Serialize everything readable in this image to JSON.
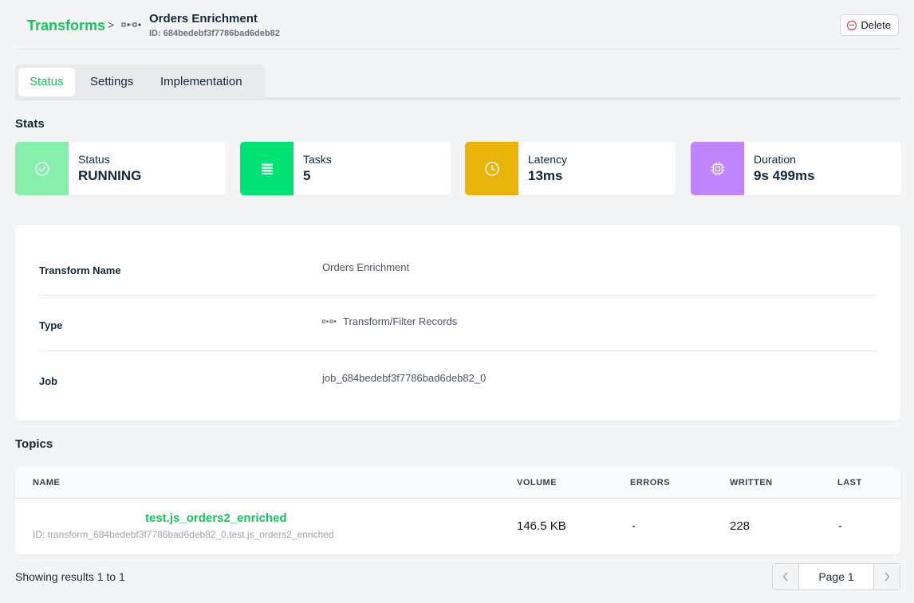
{
  "header": {
    "breadcrumb_root": "Transforms",
    "breadcrumb_sep": ">",
    "title": "Orders Enrichment",
    "id_text": "ID: 684bedebf3f7786bad6deb82",
    "delete_label": "Delete"
  },
  "tabs": [
    {
      "label": "Status",
      "active": true
    },
    {
      "label": "Settings",
      "active": false
    },
    {
      "label": "Implementation",
      "active": false
    }
  ],
  "stats": {
    "title": "Stats",
    "cards": [
      {
        "label": "Status",
        "value": "RUNNING",
        "icon": "check-circle-icon",
        "color": "#86efac"
      },
      {
        "label": "Tasks",
        "value": "5",
        "icon": "list-icon",
        "color": "#00e272"
      },
      {
        "label": "Latency",
        "value": "13ms",
        "icon": "clock-icon",
        "color": "#eab308"
      },
      {
        "label": "Duration",
        "value": "9s 499ms",
        "icon": "cpu-icon",
        "color": "#c084fc"
      }
    ]
  },
  "details": {
    "rows": [
      {
        "label": "Transform Name",
        "value": "Orders Enrichment"
      },
      {
        "label": "Type",
        "value": "Transform/Filter Records"
      },
      {
        "label": "Job",
        "value": "job_684bedebf3f7786bad6deb82_0"
      }
    ]
  },
  "topics": {
    "title": "Topics",
    "columns": [
      "NAME",
      "VOLUME",
      "ERRORS",
      "WRITTEN",
      "LAST"
    ],
    "rows": [
      {
        "name": "test.js_orders2_enriched",
        "id": "ID: transform_684bedebf3f7786bad6deb82_0.test.js_orders2_enriched",
        "volume": "146.5 KB",
        "errors": "-",
        "written": "228",
        "last": "-"
      }
    ]
  },
  "footer": {
    "results_text": "Showing results 1 to 1",
    "page_label": "Page 1"
  },
  "colors": {
    "accent": "#16c55c",
    "danger": "#dc2626"
  }
}
